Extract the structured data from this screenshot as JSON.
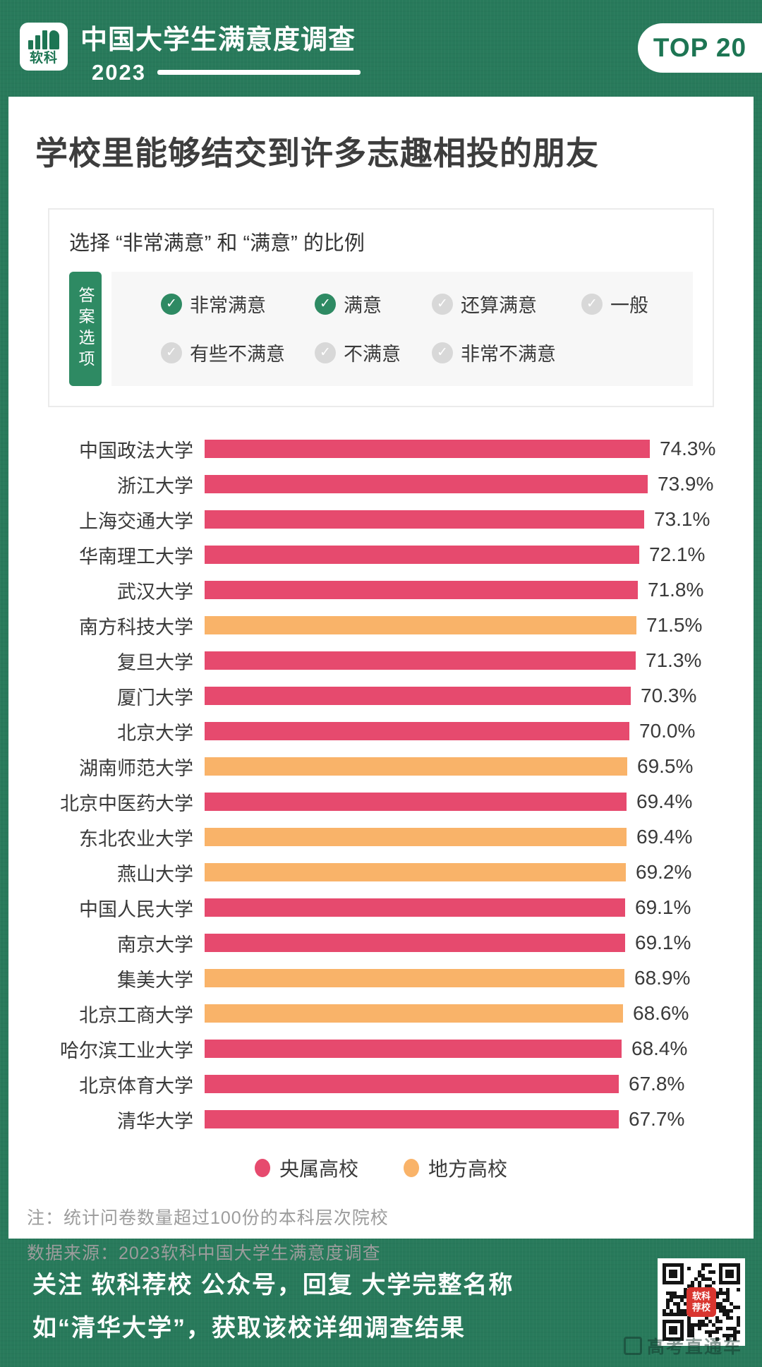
{
  "header": {
    "logo_text": "软科",
    "title": "中国大学生满意度调查",
    "year": "2023",
    "badge": "TOP 20"
  },
  "card": {
    "title": "学校里能够结交到许多志趣相投的朋友",
    "subtitle": "选择 “非常满意” 和 “满意” 的比例",
    "answer_tab": "答案选项",
    "options": [
      {
        "label": "非常满意",
        "checked": true
      },
      {
        "label": "满意",
        "checked": true
      },
      {
        "label": "还算满意",
        "checked": false
      },
      {
        "label": "一般",
        "checked": false
      },
      {
        "label": "有些不满意",
        "checked": false
      },
      {
        "label": "不满意",
        "checked": false
      },
      {
        "label": "非常不满意",
        "checked": false
      }
    ]
  },
  "chart_data": {
    "type": "bar",
    "orientation": "horizontal",
    "title": "学校里能够结交到许多志趣相投的朋友",
    "subtitle": "选择 “非常满意” 和 “满意” 的比例",
    "unit": "%",
    "categories": [
      "中国政法大学",
      "浙江大学",
      "上海交通大学",
      "华南理工大学",
      "武汉大学",
      "南方科技大学",
      "复旦大学",
      "厦门大学",
      "北京大学",
      "湖南师范大学",
      "北京中医药大学",
      "东北农业大学",
      "燕山大学",
      "中国人民大学",
      "南京大学",
      "集美大学",
      "北京工商大学",
      "哈尔滨工业大学",
      "北京体育大学",
      "清华大学"
    ],
    "values": [
      74.3,
      73.9,
      73.1,
      72.1,
      71.8,
      71.5,
      71.3,
      70.3,
      70.0,
      69.5,
      69.4,
      69.4,
      69.2,
      69.1,
      69.1,
      68.9,
      68.6,
      68.4,
      67.8,
      67.7
    ],
    "value_labels": [
      "74.3%",
      "73.9%",
      "73.1%",
      "72.1%",
      "71.8%",
      "71.5%",
      "71.3%",
      "70.3%",
      "70.0%",
      "69.5%",
      "69.4%",
      "69.4%",
      "69.2%",
      "69.1%",
      "69.1%",
      "68.9%",
      "68.6%",
      "68.4%",
      "67.8%",
      "67.7%"
    ],
    "groups": [
      "央属高校",
      "央属高校",
      "央属高校",
      "央属高校",
      "央属高校",
      "地方高校",
      "央属高校",
      "央属高校",
      "央属高校",
      "地方高校",
      "央属高校",
      "地方高校",
      "地方高校",
      "央属高校",
      "央属高校",
      "地方高校",
      "地方高校",
      "央属高校",
      "央属高校",
      "央属高校"
    ],
    "legend": [
      {
        "label": "央属高校",
        "color": "#e64a6e"
      },
      {
        "label": "地方高校",
        "color": "#f9b369"
      }
    ],
    "legend_position": "bottom",
    "grid": false
  },
  "notes": [
    "注：统计问卷数量超过100份的本科层次院校",
    "数据来源：2023软科中国大学生满意度调查"
  ],
  "footer": {
    "line1": "关注 软科荐校 公众号，回复 大学完整名称",
    "line2": "如“清华大学”，获取该校详细调查结果",
    "qr_label": "软科荐校",
    "watermark": "高考直通车"
  },
  "colors": {
    "background_green": "#287a5b",
    "brand_green": "#1d7553",
    "check_green": "#2e8a63",
    "bar_red": "#e64a6e",
    "bar_orange": "#f9b369",
    "title_text": "#3d3d3d",
    "note_gray": "#9c9c9c"
  }
}
